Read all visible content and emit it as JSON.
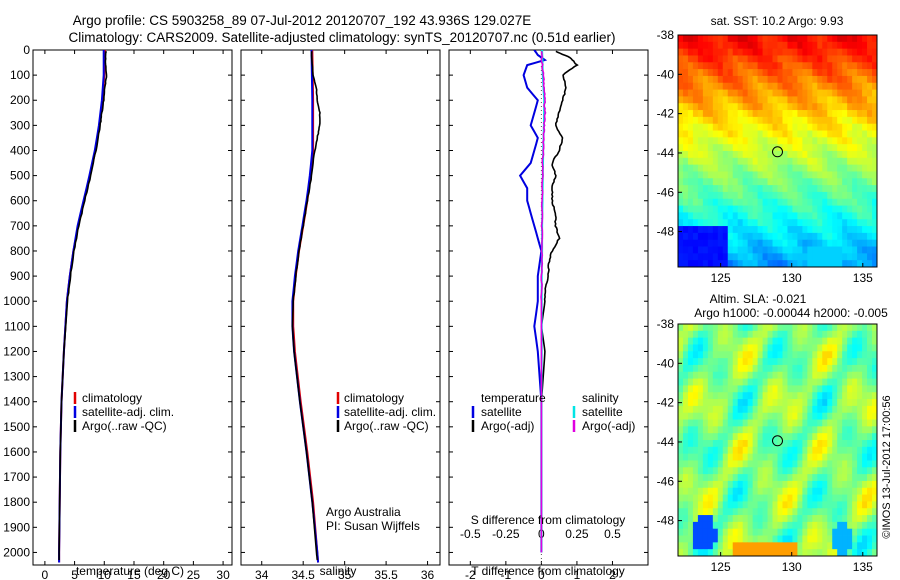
{
  "header": {
    "line1": "Argo profile: CS 5903258_89 07-Jul-2012 20120707_192 43.936S 129.027E",
    "line2": "Climatology: CARS2009. Satellite-adjusted climatology: synTS_20120707.nc (0.51d earlier)"
  },
  "colors": {
    "climatology": "#e00000",
    "satellite": "#0000e0",
    "argo": "#000000",
    "sal_satellite": "#00e5e5",
    "sal_argo": "#e000e0"
  },
  "chart_data": [
    {
      "id": "temperature",
      "type": "line",
      "xlabel": "temperature (deg C)",
      "ylabel": "",
      "xlim": [
        -2,
        31.5
      ],
      "ylim": [
        2050,
        0
      ],
      "xticks": [
        0,
        5,
        10,
        15,
        20,
        25,
        30
      ],
      "xtick_labels": [
        "0",
        "5",
        "10",
        "15",
        "20",
        "25",
        "30"
      ],
      "yticks": [
        0,
        100,
        200,
        300,
        400,
        500,
        600,
        700,
        800,
        900,
        1000,
        1100,
        1200,
        1300,
        1400,
        1500,
        1600,
        1700,
        1800,
        1900,
        2000
      ],
      "ytick_labels": [
        "0",
        "100",
        "200",
        "300",
        "400",
        "500",
        "600",
        "700",
        "800",
        "900",
        "1000",
        "1100",
        "1200",
        "1300",
        "1400",
        "1500",
        "1600",
        "1700",
        "1800",
        "1900",
        "2000"
      ],
      "legend": [
        "climatology",
        "satellite-adj. clim.",
        "Argo(..raw -QC)"
      ],
      "series": [
        {
          "name": "climatology",
          "depth": [
            0,
            100,
            200,
            300,
            400,
            500,
            600,
            700,
            800,
            900,
            1000,
            1200,
            1400,
            1600,
            1800,
            2000,
            2040
          ],
          "values": [
            10.1,
            10.0,
            9.7,
            9.2,
            8.5,
            7.6,
            6.6,
            5.6,
            4.8,
            4.2,
            3.7,
            3.2,
            2.8,
            2.6,
            2.5,
            2.4,
            2.4
          ]
        },
        {
          "name": "satellite-adj. clim.",
          "depth": [
            0,
            100,
            200,
            300,
            400,
            500,
            600,
            700,
            800,
            900,
            1000,
            1200,
            1400,
            1600,
            1800,
            2000,
            2040
          ],
          "values": [
            9.9,
            9.9,
            9.6,
            9.1,
            8.4,
            7.5,
            6.5,
            5.5,
            4.8,
            4.2,
            3.7,
            3.2,
            2.8,
            2.6,
            2.5,
            2.4,
            2.4
          ]
        },
        {
          "name": "Argo(..raw -QC)",
          "depth": [
            5,
            50,
            100,
            150,
            200,
            250,
            300,
            400,
            500,
            600,
            700,
            800,
            900,
            1000,
            1200,
            1400,
            1600,
            1800,
            2000,
            2030
          ],
          "values": [
            10.3,
            10.2,
            10.4,
            10.1,
            9.9,
            9.6,
            9.3,
            8.6,
            7.7,
            6.7,
            5.7,
            4.9,
            4.3,
            3.8,
            3.2,
            2.8,
            2.6,
            2.5,
            2.4,
            2.4
          ]
        }
      ]
    },
    {
      "id": "salinity",
      "type": "line",
      "xlabel": "salinity",
      "xlim": [
        33.75,
        36.15
      ],
      "ylim": [
        2050,
        0
      ],
      "xticks": [
        34,
        34.5,
        35,
        35.5,
        36
      ],
      "xtick_labels": [
        "34",
        "34.5",
        "35",
        "35.5",
        "36"
      ],
      "legend": [
        "climatology",
        "satellite-adj. clim.",
        "Argo(..raw -QC)"
      ],
      "annotation": [
        "Argo Australia",
        "PI: Susan Wijffels"
      ],
      "series": [
        {
          "name": "climatology",
          "depth": [
            0,
            200,
            400,
            500,
            600,
            700,
            800,
            900,
            1000,
            1100,
            1200,
            1400,
            1600,
            1800,
            2000,
            2040
          ],
          "values": [
            34.61,
            34.62,
            34.62,
            34.59,
            34.55,
            34.5,
            34.45,
            34.41,
            34.38,
            34.38,
            34.4,
            34.47,
            34.55,
            34.62,
            34.67,
            34.68
          ]
        },
        {
          "name": "satellite-adj. clim.",
          "depth": [
            0,
            200,
            400,
            500,
            600,
            700,
            800,
            900,
            1000,
            1100,
            1200,
            1400,
            1600,
            1800,
            2000,
            2040
          ],
          "values": [
            34.6,
            34.61,
            34.61,
            34.58,
            34.54,
            34.49,
            34.44,
            34.4,
            34.37,
            34.37,
            34.39,
            34.46,
            34.54,
            34.61,
            34.67,
            34.68
          ]
        },
        {
          "name": "Argo(..raw -QC)",
          "depth": [
            5,
            100,
            150,
            200,
            250,
            300,
            350,
            400,
            500,
            600,
            700,
            800,
            900,
            1000,
            1100,
            1200,
            1400,
            1600,
            1800,
            2000,
            2030
          ],
          "values": [
            34.6,
            34.62,
            34.66,
            34.67,
            34.7,
            34.7,
            34.67,
            34.64,
            34.6,
            34.55,
            34.5,
            34.45,
            34.41,
            34.38,
            34.37,
            34.39,
            34.46,
            34.54,
            34.61,
            34.66,
            34.67
          ]
        }
      ]
    },
    {
      "id": "difference",
      "type": "line",
      "xlabel": "T difference from climatology",
      "x2label": "S difference from climatology",
      "xlim": [
        -2.6,
        3.0
      ],
      "ylim": [
        2050,
        0
      ],
      "xticks": [
        -2,
        -1,
        0,
        1,
        2
      ],
      "xtick_labels": [
        "-2",
        "-1",
        "0",
        "1",
        "2"
      ],
      "x2tick_labels": [
        "-0.5",
        "-0.25",
        "0",
        "0.25",
        "0.5"
      ],
      "legend_titles": [
        "temperature",
        "salinity"
      ],
      "legend": [
        "satellite",
        "Argo(-adj)",
        "satellite",
        "Argo(-adj)"
      ],
      "series": [
        {
          "name": "T satellite",
          "depth": [
            0,
            20,
            40,
            60,
            100,
            150,
            200,
            250,
            300,
            350,
            400,
            450,
            500,
            550,
            600,
            650,
            700,
            750,
            800,
            900,
            1000,
            1100,
            1200,
            1400,
            1600,
            1800,
            2000
          ],
          "values": [
            -0.2,
            -0.1,
            0.1,
            -0.4,
            -0.5,
            -0.4,
            -0.1,
            -0.2,
            -0.3,
            -0.1,
            -0.2,
            -0.3,
            -0.6,
            -0.4,
            -0.4,
            -0.3,
            -0.2,
            -0.1,
            0.0,
            -0.1,
            -0.1,
            -0.2,
            -0.1,
            0.0,
            0.0,
            0.0,
            0.0
          ]
        },
        {
          "name": "T Argo(-adj)",
          "depth": [
            5,
            30,
            60,
            100,
            150,
            200,
            250,
            300,
            350,
            400,
            450,
            500,
            550,
            600,
            650,
            700,
            750,
            800,
            850,
            900,
            950,
            1000,
            1100,
            1200,
            1400,
            1600,
            1800,
            2000
          ],
          "values": [
            0.4,
            0.8,
            1.0,
            0.6,
            0.7,
            0.6,
            0.5,
            0.4,
            0.6,
            0.5,
            0.3,
            0.4,
            0.3,
            0.3,
            0.4,
            0.4,
            0.5,
            0.3,
            0.2,
            0.2,
            0.1,
            0.1,
            0.0,
            0.1,
            0.0,
            0.0,
            0.0,
            0.0
          ]
        },
        {
          "name": "S satellite",
          "depth": [
            0,
            100,
            200,
            300,
            400,
            500,
            600,
            700,
            800,
            900,
            1000,
            1200,
            1400,
            1600,
            1800,
            2000
          ],
          "values": [
            0.02,
            0.04,
            0.08,
            0.07,
            0.05,
            0.04,
            0.03,
            0.02,
            0.02,
            0.01,
            0.01,
            0.01,
            0.0,
            0.0,
            0.0,
            0.0
          ]
        },
        {
          "name": "S Argo(-adj)",
          "depth": [
            5,
            50,
            100,
            150,
            200,
            250,
            300,
            350,
            400,
            500,
            600,
            700,
            800,
            900,
            1000,
            1200,
            1400,
            1600,
            1800,
            2000
          ],
          "values": [
            0.0,
            0.02,
            0.05,
            0.08,
            0.09,
            0.1,
            0.08,
            0.06,
            0.05,
            0.03,
            0.02,
            0.02,
            0.01,
            0.01,
            0.0,
            0.0,
            0.0,
            0.0,
            0.0,
            0.0
          ]
        }
      ]
    },
    {
      "id": "sst_map",
      "type": "heatmap",
      "title": "sat. SST: 10.2  Argo: 9.93",
      "xlim": [
        122,
        136
      ],
      "ylim": [
        -49.8,
        -38
      ],
      "xticks": [
        125,
        130,
        135
      ],
      "xtick_labels": [
        "125",
        "130",
        "135"
      ],
      "yticks": [
        -38,
        -40,
        -42,
        -44,
        -46,
        -48
      ],
      "ytick_labels": [
        "-38",
        "-40",
        "-42",
        "-44",
        "-46",
        "-48"
      ],
      "marker": {
        "lon": 129.0,
        "lat": -43.94
      },
      "value_range": [
        8.0,
        14.0
      ]
    },
    {
      "id": "sla_map",
      "type": "heatmap",
      "title": "Altim. SLA: -0.021",
      "subtitle": "Argo h1000: -0.00044  h2000: -0.005",
      "xlim": [
        122,
        136
      ],
      "ylim": [
        -49.8,
        -38
      ],
      "xticks": [
        125,
        130,
        135
      ],
      "xtick_labels": [
        "125",
        "130",
        "135"
      ],
      "yticks": [
        -38,
        -40,
        -42,
        -44,
        -46,
        -48
      ],
      "ytick_labels": [
        "-38",
        "-40",
        "-42",
        "-44",
        "-46",
        "-48"
      ],
      "marker": {
        "lon": 129.0,
        "lat": -43.94
      },
      "value_range": [
        -0.3,
        0.3
      ]
    }
  ],
  "footer": {
    "stamp": "©IMOS 13-Jul-2012 17:00:56"
  }
}
